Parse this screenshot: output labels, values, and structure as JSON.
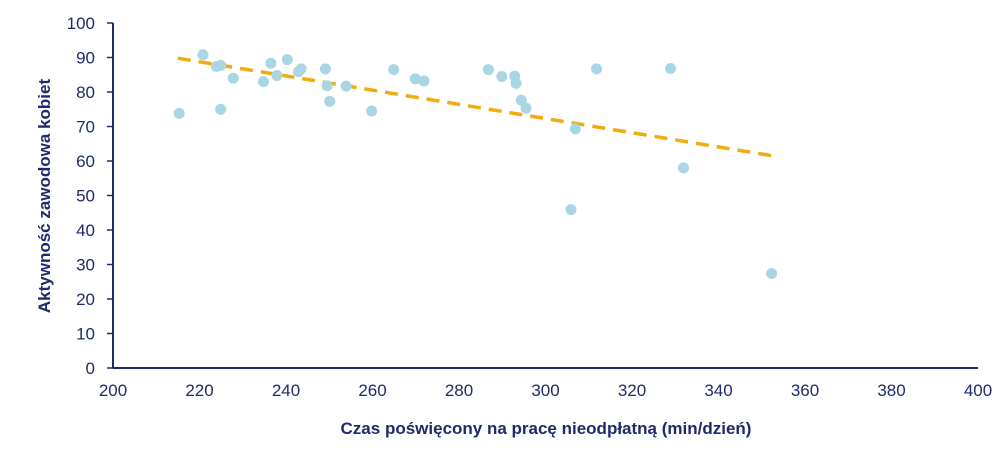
{
  "chart_data": {
    "type": "scatter",
    "title": "",
    "xlabel": "Czas poświęcony na pracę nieodpłatną (min/dzień)",
    "ylabel": "Aktywność zawodowa kobiet",
    "xlim": [
      200,
      400
    ],
    "ylim": [
      0,
      100
    ],
    "x_ticks": [
      "200",
      "220",
      "240",
      "260",
      "280",
      "300",
      "320",
      "340",
      "360",
      "380",
      "400"
    ],
    "y_ticks": [
      "0",
      "10",
      "20",
      "30",
      "40",
      "50",
      "60",
      "70",
      "80",
      "90",
      "100"
    ],
    "grid": false,
    "legend": "none",
    "colors": {
      "points": "#a9d6e2",
      "trendline": "#f0ac0e",
      "axis": "#1f2a6b",
      "text": "#1f2a6b"
    },
    "series": [
      {
        "points": [
          [
            215.3,
            73.8
          ],
          [
            220.8,
            90.8
          ],
          [
            223.9,
            87.4
          ],
          [
            224.9,
            87.7
          ],
          [
            224.9,
            75.0
          ],
          [
            227.8,
            84.0
          ],
          [
            234.8,
            83.0
          ],
          [
            236.5,
            88.3
          ],
          [
            237.9,
            84.8
          ],
          [
            240.3,
            89.4
          ],
          [
            242.9,
            85.9
          ],
          [
            243.5,
            86.7
          ],
          [
            249.1,
            86.7
          ],
          [
            249.5,
            81.8
          ],
          [
            250.1,
            77.3
          ],
          [
            253.9,
            81.7
          ],
          [
            259.8,
            74.5
          ],
          [
            264.9,
            86.5
          ],
          [
            269.9,
            83.8
          ],
          [
            271.9,
            83.2
          ],
          [
            286.8,
            86.5
          ],
          [
            289.9,
            84.5
          ],
          [
            292.9,
            84.6
          ],
          [
            293.2,
            82.5
          ],
          [
            294.4,
            77.6
          ],
          [
            295.5,
            75.3
          ],
          [
            305.9,
            45.9
          ],
          [
            306.9,
            69.3
          ],
          [
            311.8,
            86.7
          ],
          [
            328.9,
            86.8
          ],
          [
            331.9,
            58.0
          ],
          [
            352.3,
            27.4
          ]
        ]
      }
    ],
    "trendline": {
      "type": "linear",
      "x": [
        215,
        353
      ],
      "y": [
        89.8,
        61.4
      ],
      "style": "dashed"
    }
  }
}
